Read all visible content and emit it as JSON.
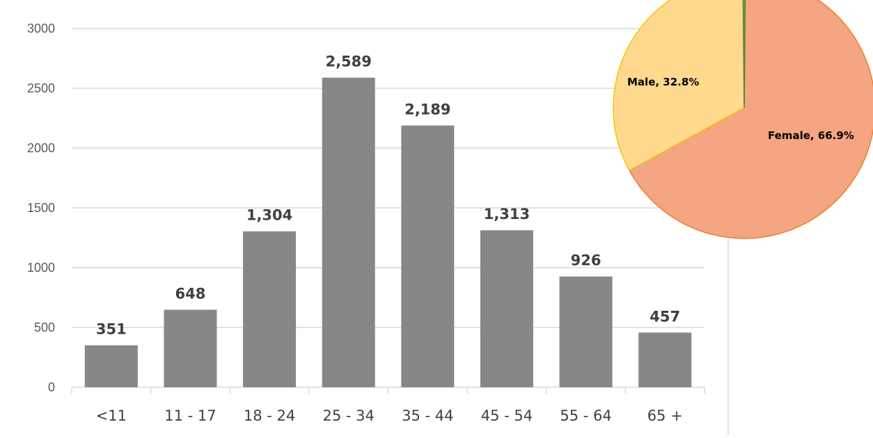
{
  "chart_data": [
    {
      "type": "bar",
      "categories": [
        "<11",
        "11 - 17",
        "18 - 24",
        "25 - 34",
        "35 - 44",
        "45 - 54",
        "55 - 64",
        "65 +"
      ],
      "values": [
        351,
        648,
        1304,
        2589,
        2189,
        1313,
        926,
        457
      ],
      "value_labels": [
        "351",
        "648",
        "1,304",
        "2,589",
        "2,189",
        "1,313",
        "926",
        "457"
      ],
      "yticks": [
        "0",
        "500",
        "1000",
        "1500",
        "2000",
        "2500",
        "3000"
      ],
      "ylim": [
        0,
        3000
      ],
      "grid": true,
      "bar_color": "#878787",
      "grid_color": "#d9d9d9"
    },
    {
      "type": "pie",
      "slices": [
        {
          "name": "Female",
          "value": 66.9,
          "label": "Female, 66.9%",
          "color": "#f4a582",
          "edge": "#ed7d31"
        },
        {
          "name": "Male",
          "value": 32.8,
          "label": "Male, 32.8%",
          "color": "#fed98e",
          "edge": "#f2c300"
        },
        {
          "name": "",
          "value": 0.3,
          "label": "",
          "color": "#70ad47",
          "edge": "#548235"
        }
      ]
    }
  ]
}
